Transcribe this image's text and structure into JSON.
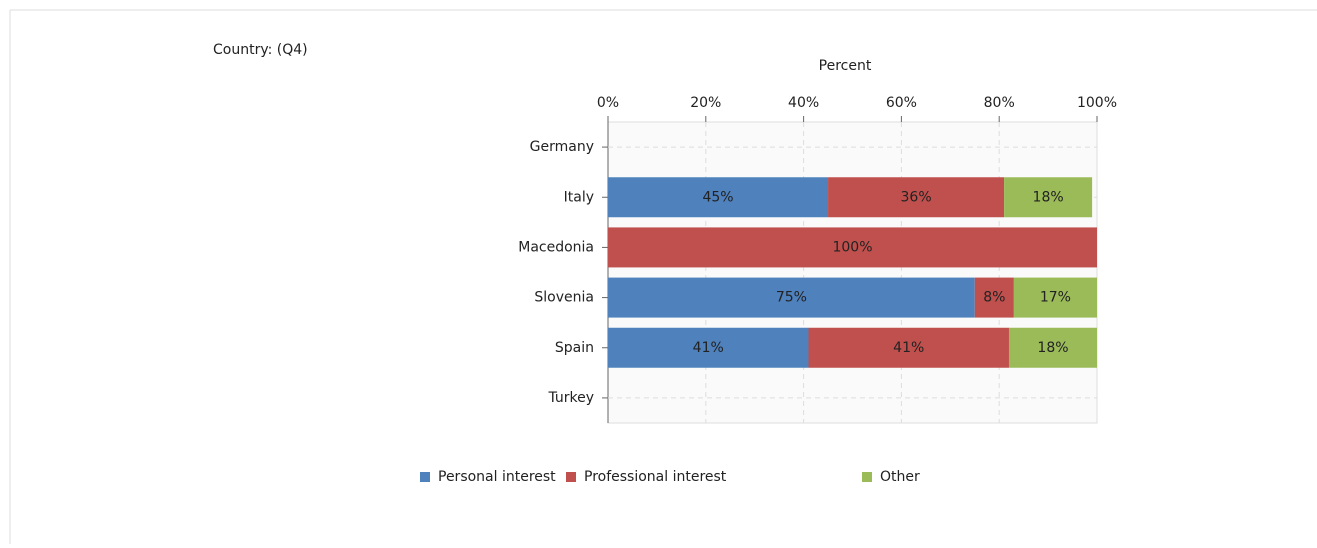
{
  "chart_data": {
    "type": "stacked_barh",
    "title": "Country: (Q4)",
    "x_label": "Percent",
    "categories": [
      "Germany",
      "Italy",
      "Macedonia",
      "Slovenia",
      "Spain",
      "Turkey"
    ],
    "series": [
      {
        "name": "Personal interest",
        "color": "#4f81bd",
        "values": [
          0,
          45,
          0,
          75,
          41,
          0
        ],
        "value_labels": [
          null,
          "45%",
          null,
          "75%",
          "41%",
          null
        ]
      },
      {
        "name": "Professional interest",
        "color": "#c0504d",
        "values": [
          0,
          36,
          100,
          8,
          41,
          0
        ],
        "value_labels": [
          null,
          "36%",
          "100%",
          "8%",
          "41%",
          null
        ]
      },
      {
        "name": "Other",
        "color": "#9bbb59",
        "values": [
          0,
          18,
          0,
          17,
          18,
          0
        ],
        "value_labels": [
          null,
          "18%",
          null,
          "17%",
          "18%",
          null
        ]
      }
    ],
    "xlim": [
      0,
      100
    ],
    "xticks": [
      {
        "value": 0,
        "label": "0%"
      },
      {
        "value": 20,
        "label": "20%"
      },
      {
        "value": 40,
        "label": "40%"
      },
      {
        "value": 60,
        "label": "60%"
      },
      {
        "value": 80,
        "label": "80%"
      },
      {
        "value": 100,
        "label": "100%"
      }
    ],
    "grid": true,
    "legend": "bottom"
  }
}
